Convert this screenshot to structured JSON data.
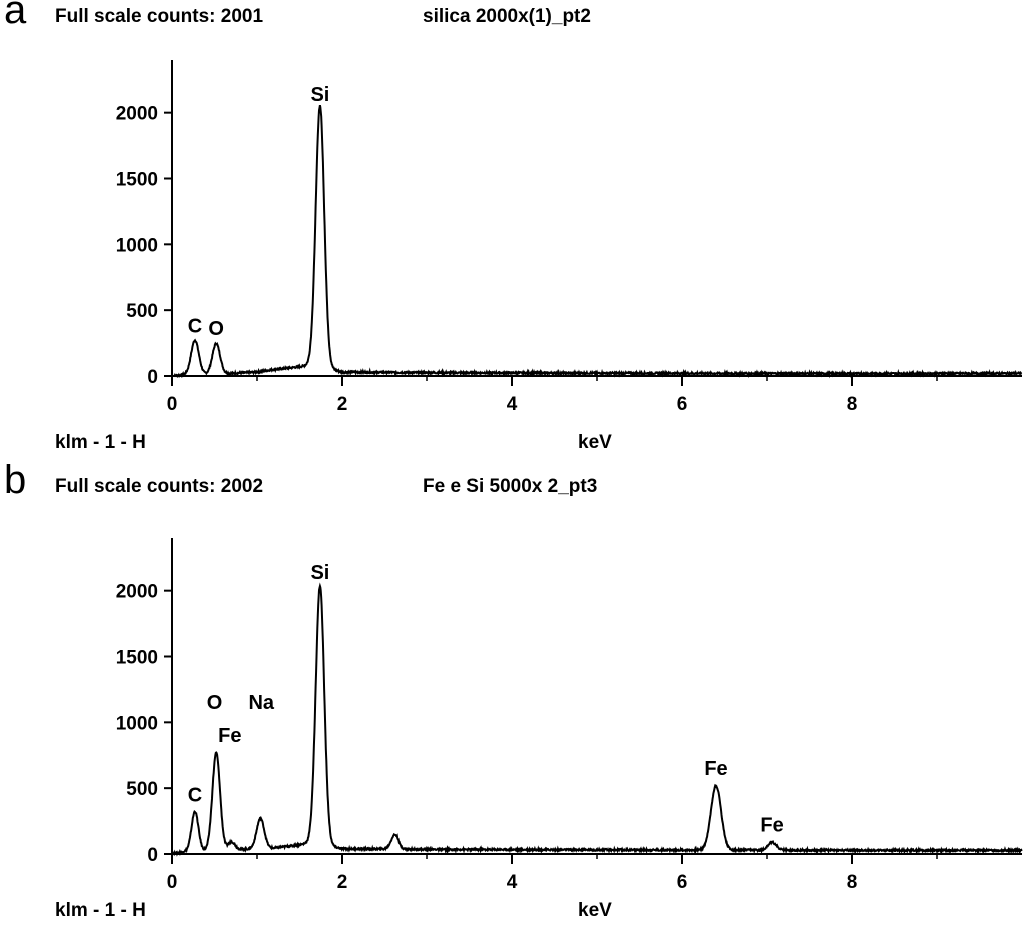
{
  "chart_data": [
    {
      "panel_label": "a",
      "type": "line",
      "header_left": "Full scale counts: 2001",
      "header_right": "silica 2000x(1)_pt2",
      "footer_left": "klm - 1 - H",
      "xlabel": "keV",
      "xlim": [
        0,
        10
      ],
      "ylim": [
        0,
        2400
      ],
      "x_ticks": [
        "0",
        "2",
        "4",
        "6",
        "8"
      ],
      "y_ticks": [
        "0",
        "500",
        "1000",
        "1500",
        "2000"
      ],
      "grid": false,
      "series": [
        {
          "peaks": [
            {
              "x": 0.27,
              "height": 260,
              "width": 0.045
            },
            {
              "x": 0.52,
              "height": 230,
              "width": 0.045
            },
            {
              "x": 1.74,
              "height": 1980,
              "width": 0.05
            }
          ],
          "background": [
            [
              0,
              0
            ],
            [
              0.15,
              10
            ],
            [
              0.7,
              20
            ],
            [
              1.0,
              30
            ],
            [
              1.2,
              50
            ],
            [
              1.5,
              70
            ],
            [
              1.65,
              90
            ],
            [
              2.0,
              30
            ],
            [
              3.0,
              25
            ],
            [
              6.0,
              20
            ],
            [
              8.0,
              18
            ],
            [
              10.0,
              20
            ]
          ]
        }
      ],
      "annotations": [
        {
          "text": "Si",
          "x": 1.74,
          "y": 2090
        },
        {
          "text": "C",
          "x": 0.27,
          "y": 330
        },
        {
          "text": "O",
          "x": 0.52,
          "y": 310
        }
      ]
    },
    {
      "panel_label": "b",
      "type": "line",
      "header_left": "Full scale counts: 2002",
      "header_right": "Fe e Si 5000x 2_pt3",
      "footer_left": "klm - 1 - H",
      "xlabel": "keV",
      "xlim": [
        0,
        10
      ],
      "ylim": [
        0,
        2400
      ],
      "x_ticks": [
        "0",
        "2",
        "4",
        "6",
        "8"
      ],
      "y_ticks": [
        "0",
        "500",
        "1000",
        "1500",
        "2000"
      ],
      "grid": false,
      "series": [
        {
          "peaks": [
            {
              "x": 0.27,
              "height": 300,
              "width": 0.04
            },
            {
              "x": 0.52,
              "height": 740,
              "width": 0.045
            },
            {
              "x": 0.7,
              "height": 60,
              "width": 0.04
            },
            {
              "x": 1.04,
              "height": 230,
              "width": 0.045
            },
            {
              "x": 1.74,
              "height": 1960,
              "width": 0.05
            },
            {
              "x": 2.62,
              "height": 110,
              "width": 0.045
            },
            {
              "x": 6.4,
              "height": 490,
              "width": 0.06
            },
            {
              "x": 7.06,
              "height": 60,
              "width": 0.05
            }
          ],
          "background": [
            [
              0,
              0
            ],
            [
              0.15,
              20
            ],
            [
              1.2,
              45
            ],
            [
              1.5,
              70
            ],
            [
              1.65,
              90
            ],
            [
              2.0,
              40
            ],
            [
              3.0,
              35
            ],
            [
              6.0,
              30
            ],
            [
              8.0,
              28
            ],
            [
              10.0,
              28
            ]
          ]
        }
      ],
      "annotations": [
        {
          "text": "Si",
          "x": 1.74,
          "y": 2090
        },
        {
          "text": "O",
          "x": 0.5,
          "y": 1100
        },
        {
          "text": "Na",
          "x": 1.05,
          "y": 1100
        },
        {
          "text": "Fe",
          "x": 0.68,
          "y": 850
        },
        {
          "text": "C",
          "x": 0.27,
          "y": 400
        },
        {
          "text": "Fe",
          "x": 6.4,
          "y": 600
        },
        {
          "text": "Fe",
          "x": 7.06,
          "y": 170
        }
      ]
    }
  ]
}
